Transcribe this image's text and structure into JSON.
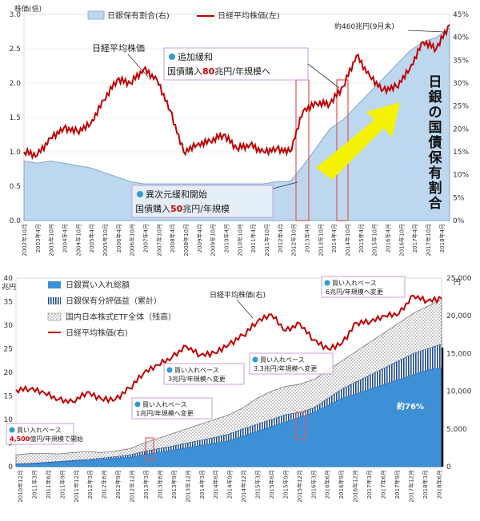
{
  "colors": {
    "nikkei_line": "#c00000",
    "boj_share_fill": "#bdd7ee",
    "boj_share_edge": "#7fa7cf",
    "etf_purchases": "#3d8fd6",
    "etf_unrealized": "#1f4f8a",
    "etf_market": "#c9c9c9",
    "highlight_box": "#e06060",
    "callout_border": "#c8a2d6",
    "bullet": "#2e9ad8",
    "arrow": "#f4f200"
  },
  "top_chart": {
    "left_axis_unit": "株価(倍)",
    "left_ticks": [
      "3.0",
      "2.5",
      "2.0",
      "1.5",
      "1.0",
      "0.5",
      "0.0"
    ],
    "right_ticks": [
      "45%",
      "40%",
      "35%",
      "30%",
      "25%",
      "20%",
      "15%",
      "10%",
      "5%",
      "0%"
    ],
    "legend": {
      "share": "日銀保有割合(右)",
      "nikkei": "日経平均株価(左)"
    },
    "x_labels": [
      "2002年10月",
      "2003年4月",
      "2003年10月",
      "2004年4月",
      "2004年10月",
      "2005年4月",
      "2005年10月",
      "2006年4月",
      "2006年10月",
      "2007年4月",
      "2007年10月",
      "2008年4月",
      "2008年10月",
      "2009年4月",
      "2009年10月",
      "2010年4月",
      "2010年10月",
      "2011年4月",
      "2011年10月",
      "2012年4月",
      "2012年10月",
      "2013年4月",
      "2013年10月",
      "2014年4月",
      "2014年10月",
      "2015年4月",
      "2015年10月",
      "2016年4月",
      "2016年10月",
      "2017年4月",
      "2017年10月",
      "2018年4月"
    ],
    "nikkei_label": "日経平均株価",
    "callout_1": {
      "line1": "異次元緩和開始",
      "line2_a": "国債購入",
      "line2_num": "50",
      "line2_b": "兆円/年規模"
    },
    "callout_2": {
      "line1": "追加緩和",
      "line2_a": "国債購入",
      "line2_num": "80",
      "line2_b": "兆円/年規模へ"
    },
    "total_label": "約460兆円(9月末)",
    "vertical_title": [
      "日",
      "銀",
      "の",
      "国",
      "債",
      "保",
      "有",
      "割",
      "合"
    ]
  },
  "bottom_chart": {
    "left_axis_unit": "兆円",
    "right_axis_unit": "円",
    "left_ticks": [
      "40",
      "35",
      "30",
      "25",
      "20",
      "15",
      "10",
      "5",
      "0"
    ],
    "right_ticks": [
      "25,000",
      "20,000",
      "15,000",
      "10,000",
      "5,000",
      "0"
    ],
    "legend": [
      "日銀買い入れ総額",
      "日銀保有分評価益（累計）",
      "国内日本株式ETF全体（残高）",
      "日経平均株価(右)"
    ],
    "x_labels": [
      "2010年12月",
      "2011年3月",
      "2011年6月",
      "2011年9月",
      "2011年12月",
      "2012年3月",
      "2012年6月",
      "2012年9月",
      "2012年12月",
      "2013年3月",
      "2013年6月",
      "2013年9月",
      "2013年12月",
      "2014年3月",
      "2014年6月",
      "2014年9月",
      "2014年12月",
      "2015年3月",
      "2015年6月",
      "2015年9月",
      "2015年12月",
      "2016年3月",
      "2016年6月",
      "2016年9月",
      "2016年12月",
      "2017年3月",
      "2017年6月",
      "2017年9月",
      "2017年12月",
      "2018年3月",
      "2018年6月"
    ],
    "nikkei_label": "日経平均株価(右)",
    "callout_a": {
      "line1": "買い入れペース",
      "line2_num": "4,500",
      "line2_b": "億円/年規模で開始"
    },
    "callout_b": {
      "line1": "買い入れペース",
      "line2": "1兆円/年規模へ変更"
    },
    "callout_c": {
      "line1": "買い入れペース",
      "line2": "3兆円/年規模へ変更"
    },
    "callout_d": {
      "line1": "買い入れペース",
      "line2": "3.3兆円/年規模へ変更"
    },
    "callout_e": {
      "line1": "買い入れペース",
      "line2": "6兆円/年規模へ変更"
    },
    "share_label": "約76%"
  },
  "chart_data": [
    {
      "type": "area",
      "ylim_left": [
        0,
        3.0
      ],
      "ylim_right": [
        0,
        45
      ],
      "x": [
        "2002年10月",
        "2003年4月",
        "2003年10月",
        "2004年4月",
        "2004年10月",
        "2005年4月",
        "2005年10月",
        "2006年4月",
        "2006年10月",
        "2007年4月",
        "2007年10月",
        "2008年4月",
        "2008年10月",
        "2009年4月",
        "2009年10月",
        "2010年4月",
        "2010年10月",
        "2011年4月",
        "2011年10月",
        "2012年4月",
        "2012年10月",
        "2013年4月",
        "2013年10月",
        "2014年4月",
        "2014年10月",
        "2015年4月",
        "2015年10月",
        "2016年4月",
        "2016年10月",
        "2017年4月",
        "2017年10月",
        "2018年4月",
        "2018年9月"
      ],
      "series": [
        {
          "name": "日経平均株価(左)",
          "axis": "left",
          "values": [
            1.0,
            0.95,
            1.2,
            1.35,
            1.3,
            1.4,
            1.75,
            2.05,
            2.0,
            2.2,
            2.05,
            1.6,
            1.0,
            1.1,
            1.15,
            1.25,
            1.05,
            1.1,
            1.0,
            1.05,
            1.0,
            1.6,
            1.7,
            1.7,
            1.95,
            2.4,
            2.1,
            1.9,
            1.95,
            2.2,
            2.6,
            2.5,
            2.85
          ]
        },
        {
          "name": "日銀保有割合(右)",
          "axis": "right",
          "values": [
            13,
            12.5,
            13,
            12.5,
            12,
            11.5,
            10.5,
            9.5,
            8.5,
            8,
            8,
            8,
            8,
            8,
            8,
            8,
            8,
            8,
            8,
            8.5,
            8.5,
            12,
            16,
            20,
            22,
            25,
            28,
            31,
            34,
            37,
            39,
            40,
            42
          ]
        }
      ]
    },
    {
      "type": "area",
      "ylim_left": [
        0,
        40
      ],
      "ylim_right": [
        0,
        25000
      ],
      "x": [
        "2010年12月",
        "2011年3月",
        "2011年6月",
        "2011年9月",
        "2011年12月",
        "2012年3月",
        "2012年6月",
        "2012年9月",
        "2012年12月",
        "2013年3月",
        "2013年6月",
        "2013年9月",
        "2013年12月",
        "2014年3月",
        "2014年6月",
        "2014年9月",
        "2014年12月",
        "2015年3月",
        "2015年6月",
        "2015年9月",
        "2015年12月",
        "2016年3月",
        "2016年6月",
        "2016年9月",
        "2016年12月",
        "2017年3月",
        "2017年6月",
        "2017年9月",
        "2017年12月",
        "2018年3月",
        "2018年6月"
      ],
      "series": [
        {
          "name": "日銀買い入れ総額",
          "axis": "left",
          "values": [
            0.5,
            0.6,
            0.8,
            1.0,
            1.2,
            1.3,
            1.5,
            1.8,
            2.0,
            2.5,
            3.0,
            3.5,
            4.0,
            4.5,
            5.0,
            5.5,
            6.5,
            7.5,
            8.5,
            9.5,
            10.5,
            11.5,
            13.0,
            14.5,
            15.5,
            16.5,
            17.5,
            18.5,
            19.5,
            20.5,
            21.0
          ]
        },
        {
          "name": "日銀保有分評価益（累計）",
          "axis": "left",
          "values": [
            0.6,
            0.7,
            0.9,
            1.1,
            1.3,
            1.5,
            1.8,
            2.1,
            2.5,
            3.2,
            3.8,
            4.3,
            5.0,
            5.6,
            6.2,
            6.9,
            8.0,
            9.0,
            10.0,
            11.0,
            11.5,
            12.5,
            14.5,
            16.5,
            18.0,
            19.5,
            21.0,
            22.5,
            24.0,
            25.0,
            26.0
          ]
        },
        {
          "name": "国内日本株式ETF全体（残高）",
          "axis": "left",
          "values": [
            2.5,
            2.8,
            2.8,
            2.7,
            3.0,
            3.2,
            3.0,
            3.3,
            3.8,
            5.0,
            6.0,
            7.0,
            8.0,
            9.0,
            10.0,
            11.0,
            12.5,
            14.5,
            16.0,
            17.0,
            17.5,
            18.5,
            20.5,
            22.5,
            24.5,
            26.5,
            28.5,
            30.5,
            32.5,
            34.0,
            35.5
          ]
        },
        {
          "name": "日経平均株価(右)",
          "axis": "right",
          "values": [
            10200,
            10300,
            9800,
            8900,
            8600,
            9900,
            9000,
            8900,
            10400,
            12400,
            13500,
            14500,
            16000,
            14800,
            15100,
            16200,
            17400,
            19200,
            20200,
            18000,
            19000,
            16800,
            15600,
            16400,
            19100,
            19200,
            20000,
            20300,
            22700,
            22000,
            22300
          ]
        }
      ]
    }
  ]
}
